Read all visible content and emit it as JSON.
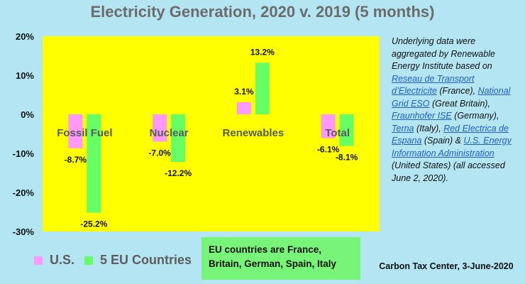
{
  "title": "Electricity Generation, 2020 v. 2019 (5 months)",
  "colors": {
    "background": "#b3e5f3",
    "plot_area": "#ffff00",
    "us": "#ff99ff",
    "eu": "#66ff66"
  },
  "note": {
    "intro": "Underlying data were aggregated by Renewable Energy Institute based on",
    "links": [
      {
        "text": "Reseau de Transport d’Electricite",
        "after": " (France), "
      },
      {
        "text": "National Grid ESO",
        "after": " (Great Britain), "
      },
      {
        "text": "Fraunhofer ISE",
        "after": " (Germany), "
      },
      {
        "text": "Terna",
        "after": " (Italy), "
      },
      {
        "text": "Red Electrica de Espana",
        "after": " (Spain) & "
      },
      {
        "text": "U.S. Energy Information Administration",
        "after": " (United States) (all accessed June 2, 2020)."
      }
    ]
  },
  "legend": {
    "us": "U.S.",
    "eu": "5 EU Countries"
  },
  "callout": {
    "line1": "EU countries are France,",
    "line2": "Britain, German, Spain, Italy"
  },
  "credit": "Carbon Tax Center, 3-June-2020",
  "chart_data": {
    "type": "bar",
    "title": "Electricity Generation, 2020 v. 2019 (5 months)",
    "categories": [
      "Fossil Fuel",
      "Nuclear",
      "Renewables",
      "Total"
    ],
    "series": [
      {
        "name": "U.S.",
        "values": [
          -8.7,
          -7.0,
          3.1,
          -6.1
        ],
        "labels": [
          "-8.7%",
          "-7.0%",
          "3.1%",
          "-6.1%"
        ]
      },
      {
        "name": "5 EU Countries",
        "values": [
          -25.2,
          -12.2,
          13.2,
          -8.1
        ],
        "labels": [
          "-25.2%",
          "-12.2%",
          "13.2%",
          "-8.1%"
        ]
      }
    ],
    "ylim": [
      -30,
      20
    ],
    "yticks": [
      20,
      10,
      0,
      -10,
      -20,
      -30
    ],
    "ytick_labels": [
      "20%",
      "10%",
      "0%",
      "-10%",
      "-20%",
      "-30%"
    ],
    "grid": false,
    "legend_position": "bottom-left"
  }
}
